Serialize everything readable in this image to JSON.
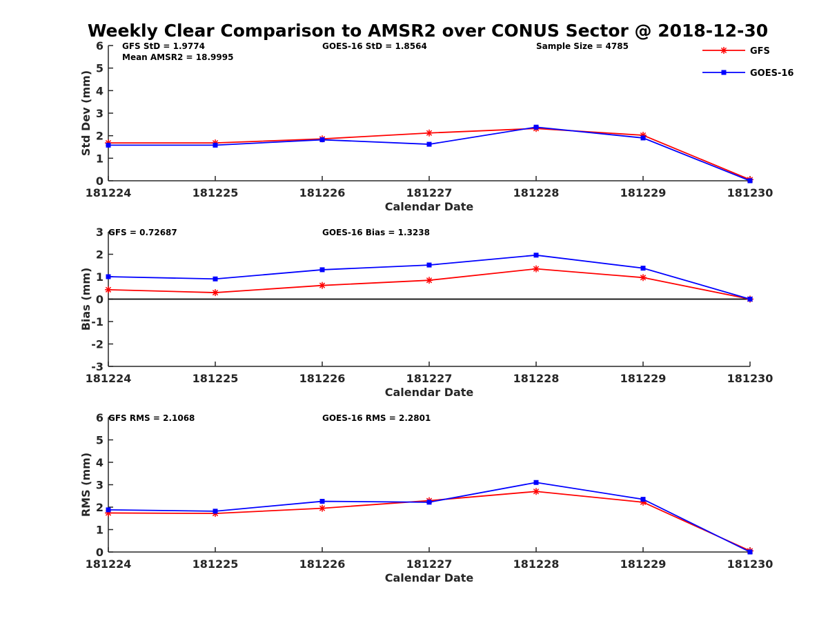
{
  "title": "Weekly Clear Comparison to AMSR2 over CONUS Sector @ 2018-12-30",
  "legend": [
    {
      "label": "GFS",
      "color": "#ff0000",
      "marker": "asterisk"
    },
    {
      "label": "GOES-16",
      "color": "#0000ff",
      "marker": "square"
    }
  ],
  "chart_data": [
    {
      "type": "line",
      "x": [
        "181224",
        "181225",
        "181226",
        "181227",
        "181228",
        "181229",
        "181230"
      ],
      "xlabel": "Calendar Date",
      "ylabel": "Std Dev (mm)",
      "ylim": [
        0,
        6
      ],
      "yticks": [
        "0",
        "1",
        "2",
        "3",
        "4",
        "5",
        "6"
      ],
      "zero_line": false,
      "annotations": [
        "GFS StD = 1.9774",
        "Mean AMSR2 = 18.9995",
        "GOES-16 StD = 1.8564",
        "Sample Size = 4785"
      ],
      "series": [
        {
          "name": "GFS",
          "color": "#ff0000",
          "values": [
            1.68,
            1.68,
            1.86,
            2.12,
            2.32,
            2.02,
            0.05
          ]
        },
        {
          "name": "GOES-16",
          "color": "#0000ff",
          "values": [
            1.58,
            1.58,
            1.82,
            1.62,
            2.38,
            1.9,
            0.0
          ]
        }
      ]
    },
    {
      "type": "line",
      "x": [
        "181224",
        "181225",
        "181226",
        "181227",
        "181228",
        "181229",
        "181230"
      ],
      "xlabel": "Calendar Date",
      "ylabel": "Bias (mm)",
      "ylim": [
        -3,
        3
      ],
      "yticks": [
        "-3",
        "-2",
        "-1",
        "0",
        "1",
        "2",
        "3"
      ],
      "zero_line": true,
      "annotations": [
        "GFS = 0.72687",
        "GOES-16 Bias  = 1.3238"
      ],
      "series": [
        {
          "name": "GFS",
          "color": "#ff0000",
          "values": [
            0.42,
            0.29,
            0.61,
            0.84,
            1.35,
            0.96,
            0.0
          ]
        },
        {
          "name": "GOES-16",
          "color": "#0000ff",
          "values": [
            1.0,
            0.9,
            1.31,
            1.52,
            1.96,
            1.38,
            0.0
          ]
        }
      ]
    },
    {
      "type": "line",
      "x": [
        "181224",
        "181225",
        "181226",
        "181227",
        "181228",
        "181229",
        "181230"
      ],
      "xlabel": "Calendar Date",
      "ylabel": "RMS (mm)",
      "ylim": [
        0,
        6
      ],
      "yticks": [
        "0",
        "1",
        "2",
        "3",
        "4",
        "5",
        "6"
      ],
      "zero_line": false,
      "annotations": [
        "GFS RMS = 2.1068",
        "GOES-16 RMS = 2.2801"
      ],
      "series": [
        {
          "name": "GFS",
          "color": "#ff0000",
          "values": [
            1.74,
            1.72,
            1.95,
            2.29,
            2.7,
            2.22,
            0.05
          ]
        },
        {
          "name": "GOES-16",
          "color": "#0000ff",
          "values": [
            1.88,
            1.82,
            2.26,
            2.22,
            3.1,
            2.35,
            0.0
          ]
        }
      ]
    }
  ]
}
